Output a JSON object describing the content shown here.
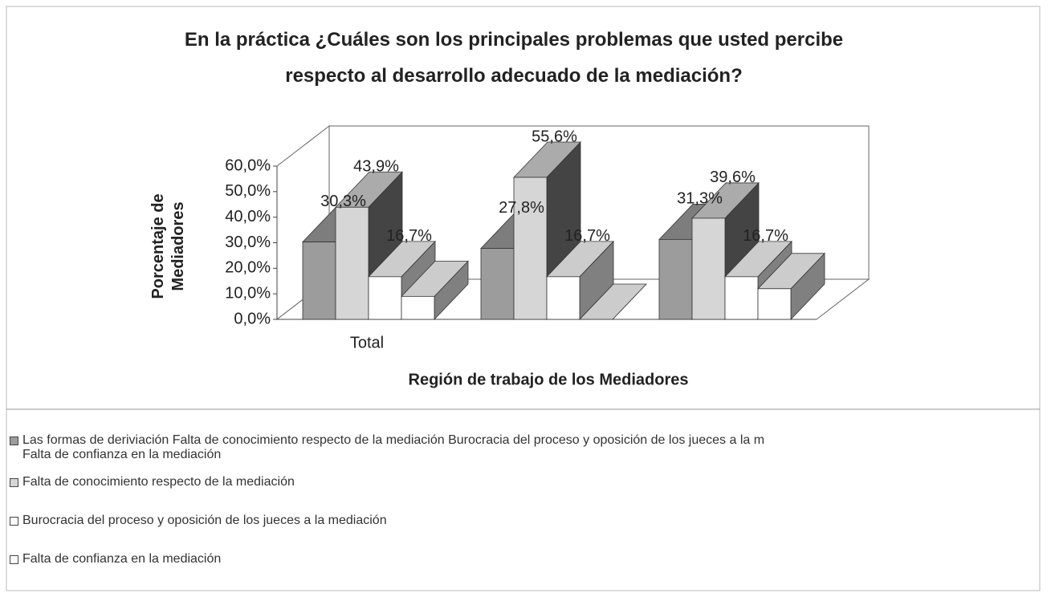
{
  "chart_data": {
    "type": "bar3d",
    "title": "En la práctica ¿Cuáles son los principales problemas que usted percibe respecto al desarrollo adecuado de la mediación?",
    "y_label": "Porcentaje de Mediadores",
    "x_label": "Región de trabajo de los Mediadores",
    "categories": [
      "Total",
      null,
      null
    ],
    "series": [
      {
        "name": "Las formas de deriviación Falta de conocimiento respecto de la mediación Burocracia del proceso y oposición de los jueces a la m\nFalta de confianza en la mediación",
        "color": "#9c9c9c",
        "values": [
          30.3,
          27.8,
          31.3
        ],
        "value_labels": [
          "30,3%",
          "27,8%",
          "31,3%"
        ]
      },
      {
        "name": "Falta de conocimiento respecto de la mediación",
        "color": "#d6d6d6",
        "values": [
          43.9,
          55.6,
          39.6
        ],
        "value_labels": [
          "43,9%",
          "55,6%",
          "39,6%"
        ]
      },
      {
        "name": "Burocracia del proceso y oposición de los jueces a la mediación",
        "color": "#ffffff",
        "values": [
          16.7,
          16.7,
          16.7
        ],
        "value_labels": [
          "16,7%",
          "16,7%",
          "16,7%"
        ]
      },
      {
        "name": "Falta de confianza en la mediación",
        "color": "#ffffff",
        "values": [
          9,
          0,
          12
        ]
      }
    ],
    "ylim": [
      0,
      60
    ],
    "yticks": [
      {
        "value": 0,
        "label": "0,0%"
      },
      {
        "value": 10,
        "label": "10,0%"
      },
      {
        "value": 20,
        "label": "20,0%"
      },
      {
        "value": 30,
        "label": "30,0%"
      },
      {
        "value": 40,
        "label": "40,0%"
      },
      {
        "value": 50,
        "label": "50,0%"
      },
      {
        "value": 60,
        "label": "60,0%"
      }
    ]
  }
}
